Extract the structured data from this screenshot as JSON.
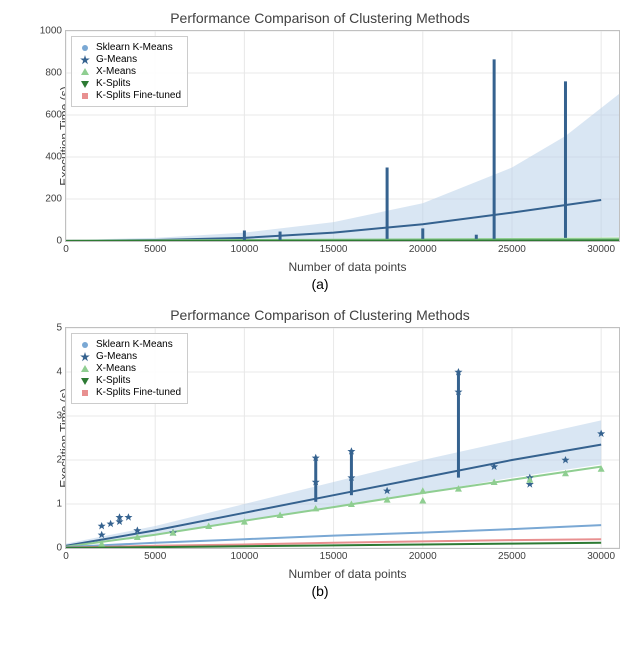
{
  "chart_a": {
    "title": "Performance Comparison of Clustering Methods",
    "ylabel": "Execution Time (s)",
    "xlabel": "Number of data points",
    "subcaption": "(a)",
    "xlim": [
      0,
      31000
    ],
    "ylim": [
      0,
      1000
    ],
    "xticks": [
      0,
      5000,
      10000,
      15000,
      20000,
      25000,
      30000
    ],
    "yticks": [
      0,
      200,
      400,
      600,
      800,
      1000
    ],
    "background": "#ffffff",
    "grid_color": "#e8e8e8",
    "label_fontsize": 12,
    "title_fontsize": 14,
    "series": [
      {
        "name": "Sklearn K-Means",
        "color": "#7aa8d4",
        "marker": "circle"
      },
      {
        "name": "G-Means",
        "color": "#35628f",
        "marker": "star"
      },
      {
        "name": "X-Means",
        "color": "#8fce91",
        "marker": "triangle-up"
      },
      {
        "name": "K-Splits",
        "color": "#2d7a33",
        "marker": "triangle-down"
      },
      {
        "name": "K-Splits Fine-tuned",
        "color": "#e89090",
        "marker": "square"
      }
    ],
    "main_line": {
      "color": "#35628f",
      "points": [
        [
          0,
          1
        ],
        [
          5000,
          5
        ],
        [
          10000,
          15
        ],
        [
          15000,
          40
        ],
        [
          20000,
          80
        ],
        [
          25000,
          135
        ],
        [
          30000,
          195
        ]
      ]
    },
    "confidence_band": {
      "color": "#b3cde8",
      "opacity": 0.5,
      "upper": [
        [
          0,
          5
        ],
        [
          5000,
          15
        ],
        [
          10000,
          40
        ],
        [
          15000,
          90
        ],
        [
          20000,
          180
        ],
        [
          25000,
          350
        ],
        [
          28000,
          500
        ],
        [
          31000,
          700
        ]
      ],
      "lower": [
        [
          0,
          0
        ],
        [
          5000,
          0
        ],
        [
          10000,
          0
        ],
        [
          15000,
          5
        ],
        [
          20000,
          10
        ],
        [
          25000,
          15
        ],
        [
          31000,
          20
        ]
      ]
    },
    "spikes": [
      {
        "x": 10000,
        "low": 5,
        "high": 50,
        "color": "#35628f"
      },
      {
        "x": 12000,
        "low": 5,
        "high": 45,
        "color": "#35628f"
      },
      {
        "x": 18000,
        "low": 10,
        "high": 350,
        "color": "#35628f"
      },
      {
        "x": 20000,
        "low": 10,
        "high": 60,
        "color": "#35628f"
      },
      {
        "x": 23000,
        "low": 10,
        "high": 30,
        "color": "#35628f"
      },
      {
        "x": 24000,
        "low": 10,
        "high": 865,
        "color": "#35628f"
      },
      {
        "x": 28000,
        "low": 15,
        "high": 760,
        "color": "#35628f"
      }
    ],
    "flat_lines": [
      {
        "color": "#e89090",
        "points": [
          [
            0,
            2
          ],
          [
            31000,
            5
          ]
        ]
      },
      {
        "color": "#7aa8d4",
        "points": [
          [
            0,
            1
          ],
          [
            31000,
            8
          ]
        ]
      },
      {
        "color": "#8fce91",
        "points": [
          [
            0,
            1
          ],
          [
            31000,
            12
          ]
        ]
      },
      {
        "color": "#2d7a33",
        "points": [
          [
            0,
            0
          ],
          [
            31000,
            3
          ]
        ]
      }
    ]
  },
  "chart_b": {
    "title": "Performance Comparison of Clustering Methods",
    "ylabel": "Execution Time (s)",
    "xlabel": "Number of data points",
    "subcaption": "(b)",
    "xlim": [
      0,
      31000
    ],
    "ylim": [
      0,
      5
    ],
    "xticks": [
      0,
      5000,
      10000,
      15000,
      20000,
      25000,
      30000
    ],
    "yticks": [
      0,
      1,
      2,
      3,
      4,
      5
    ],
    "background": "#ffffff",
    "grid_color": "#e8e8e8",
    "series": [
      {
        "name": "Sklearn K-Means",
        "color": "#7aa8d4",
        "marker": "circle"
      },
      {
        "name": "G-Means",
        "color": "#35628f",
        "marker": "star"
      },
      {
        "name": "X-Means",
        "color": "#8fce91",
        "marker": "triangle-up"
      },
      {
        "name": "K-Splits",
        "color": "#2d7a33",
        "marker": "triangle-down"
      },
      {
        "name": "K-Splits Fine-tuned",
        "color": "#e89090",
        "marker": "square"
      }
    ],
    "gmeans_line": {
      "color": "#35628f",
      "points": [
        [
          0,
          0.05
        ],
        [
          5000,
          0.4
        ],
        [
          10000,
          0.8
        ],
        [
          15000,
          1.2
        ],
        [
          20000,
          1.6
        ],
        [
          25000,
          2.0
        ],
        [
          30000,
          2.35
        ]
      ]
    },
    "gmeans_band": {
      "color": "#b3cde8",
      "opacity": 0.5,
      "upper": [
        [
          0,
          0.1
        ],
        [
          5000,
          0.5
        ],
        [
          10000,
          1.0
        ],
        [
          15000,
          1.5
        ],
        [
          20000,
          2.0
        ],
        [
          25000,
          2.45
        ],
        [
          30000,
          2.9
        ]
      ],
      "lower": [
        [
          0,
          0.0
        ],
        [
          5000,
          0.3
        ],
        [
          10000,
          0.6
        ],
        [
          15000,
          0.95
        ],
        [
          20000,
          1.25
        ],
        [
          25000,
          1.6
        ],
        [
          30000,
          1.9
        ]
      ]
    },
    "xmeans_line": {
      "color": "#8fce91",
      "points": [
        [
          0,
          0.03
        ],
        [
          5000,
          0.3
        ],
        [
          10000,
          0.62
        ],
        [
          15000,
          0.93
        ],
        [
          20000,
          1.25
        ],
        [
          25000,
          1.55
        ],
        [
          30000,
          1.85
        ]
      ]
    },
    "sklearn_line": {
      "color": "#7aa8d4",
      "points": [
        [
          0,
          0.02
        ],
        [
          5000,
          0.12
        ],
        [
          10000,
          0.2
        ],
        [
          15000,
          0.28
        ],
        [
          20000,
          0.35
        ],
        [
          25000,
          0.43
        ],
        [
          30000,
          0.52
        ]
      ]
    },
    "ksplits_ft_line": {
      "color": "#e89090",
      "points": [
        [
          0,
          0.01
        ],
        [
          5000,
          0.05
        ],
        [
          10000,
          0.08
        ],
        [
          15000,
          0.12
        ],
        [
          20000,
          0.15
        ],
        [
          25000,
          0.18
        ],
        [
          30000,
          0.2
        ]
      ]
    },
    "ksplits_line": {
      "color": "#2d7a33",
      "points": [
        [
          0,
          0.005
        ],
        [
          5000,
          0.02
        ],
        [
          10000,
          0.04
        ],
        [
          15000,
          0.06
        ],
        [
          20000,
          0.08
        ],
        [
          25000,
          0.1
        ],
        [
          30000,
          0.12
        ]
      ]
    },
    "gmeans_scatter": [
      [
        2000,
        0.3
      ],
      [
        2000,
        0.5
      ],
      [
        2500,
        0.55
      ],
      [
        3000,
        0.6
      ],
      [
        3000,
        0.7
      ],
      [
        3500,
        0.7
      ],
      [
        4000,
        0.4
      ],
      [
        6000,
        0.35
      ],
      [
        14000,
        1.5
      ],
      [
        14000,
        2.05
      ],
      [
        16000,
        1.6
      ],
      [
        16000,
        2.2
      ],
      [
        18000,
        1.3
      ],
      [
        22000,
        3.55
      ],
      [
        22000,
        4.0
      ],
      [
        24000,
        1.85
      ],
      [
        26000,
        1.6
      ],
      [
        26000,
        1.45
      ],
      [
        28000,
        2.0
      ],
      [
        30000,
        2.6
      ]
    ],
    "xmeans_scatter": [
      [
        2000,
        0.1
      ],
      [
        4000,
        0.25
      ],
      [
        6000,
        0.35
      ],
      [
        8000,
        0.5
      ],
      [
        10000,
        0.6
      ],
      [
        12000,
        0.75
      ],
      [
        14000,
        0.9
      ],
      [
        16000,
        1.0
      ],
      [
        18000,
        1.1
      ],
      [
        20000,
        1.08
      ],
      [
        20000,
        1.3
      ],
      [
        22000,
        1.35
      ],
      [
        24000,
        1.5
      ],
      [
        26000,
        1.55
      ],
      [
        28000,
        1.7
      ],
      [
        30000,
        1.8
      ]
    ],
    "spikes_b": [
      {
        "x": 14000,
        "low": 1.05,
        "high": 2.05,
        "color": "#35628f"
      },
      {
        "x": 16000,
        "low": 1.2,
        "high": 2.2,
        "color": "#35628f"
      },
      {
        "x": 22000,
        "low": 1.6,
        "high": 4.0,
        "color": "#35628f"
      }
    ]
  }
}
